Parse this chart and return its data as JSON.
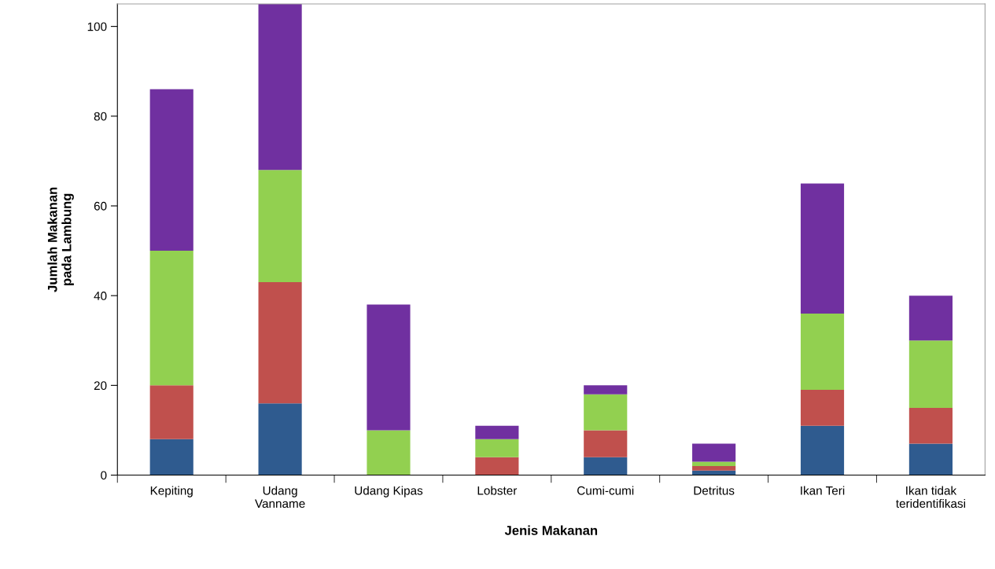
{
  "chart_data": {
    "type": "bar",
    "stacked": true,
    "xlabel": "Jenis Makanan",
    "ylabel": "Jumlah Makanan\npada Lambung",
    "categories": [
      "Kepiting",
      "Udang\nVanname",
      "Udang Kipas",
      "Lobster",
      "Cumi-cumi",
      "Detritus",
      "Ikan Teri",
      "Ikan tidak\nteridentifikasi"
    ],
    "series": [
      {
        "color": "#2f5b8f",
        "values": [
          8,
          16,
          0,
          0,
          4,
          1,
          11,
          7
        ]
      },
      {
        "color": "#c0504d",
        "values": [
          12,
          27,
          0,
          4,
          6,
          1,
          8,
          8
        ]
      },
      {
        "color": "#92d050",
        "values": [
          30,
          25,
          10,
          4,
          8,
          1,
          17,
          15
        ]
      },
      {
        "color": "#7030a0",
        "values": [
          36,
          37,
          28,
          3,
          2,
          4,
          29,
          10
        ]
      }
    ],
    "ylim": [
      0,
      105
    ],
    "yticks": [
      0,
      20,
      40,
      60,
      80,
      100
    ],
    "grid": false,
    "legend": false
  }
}
